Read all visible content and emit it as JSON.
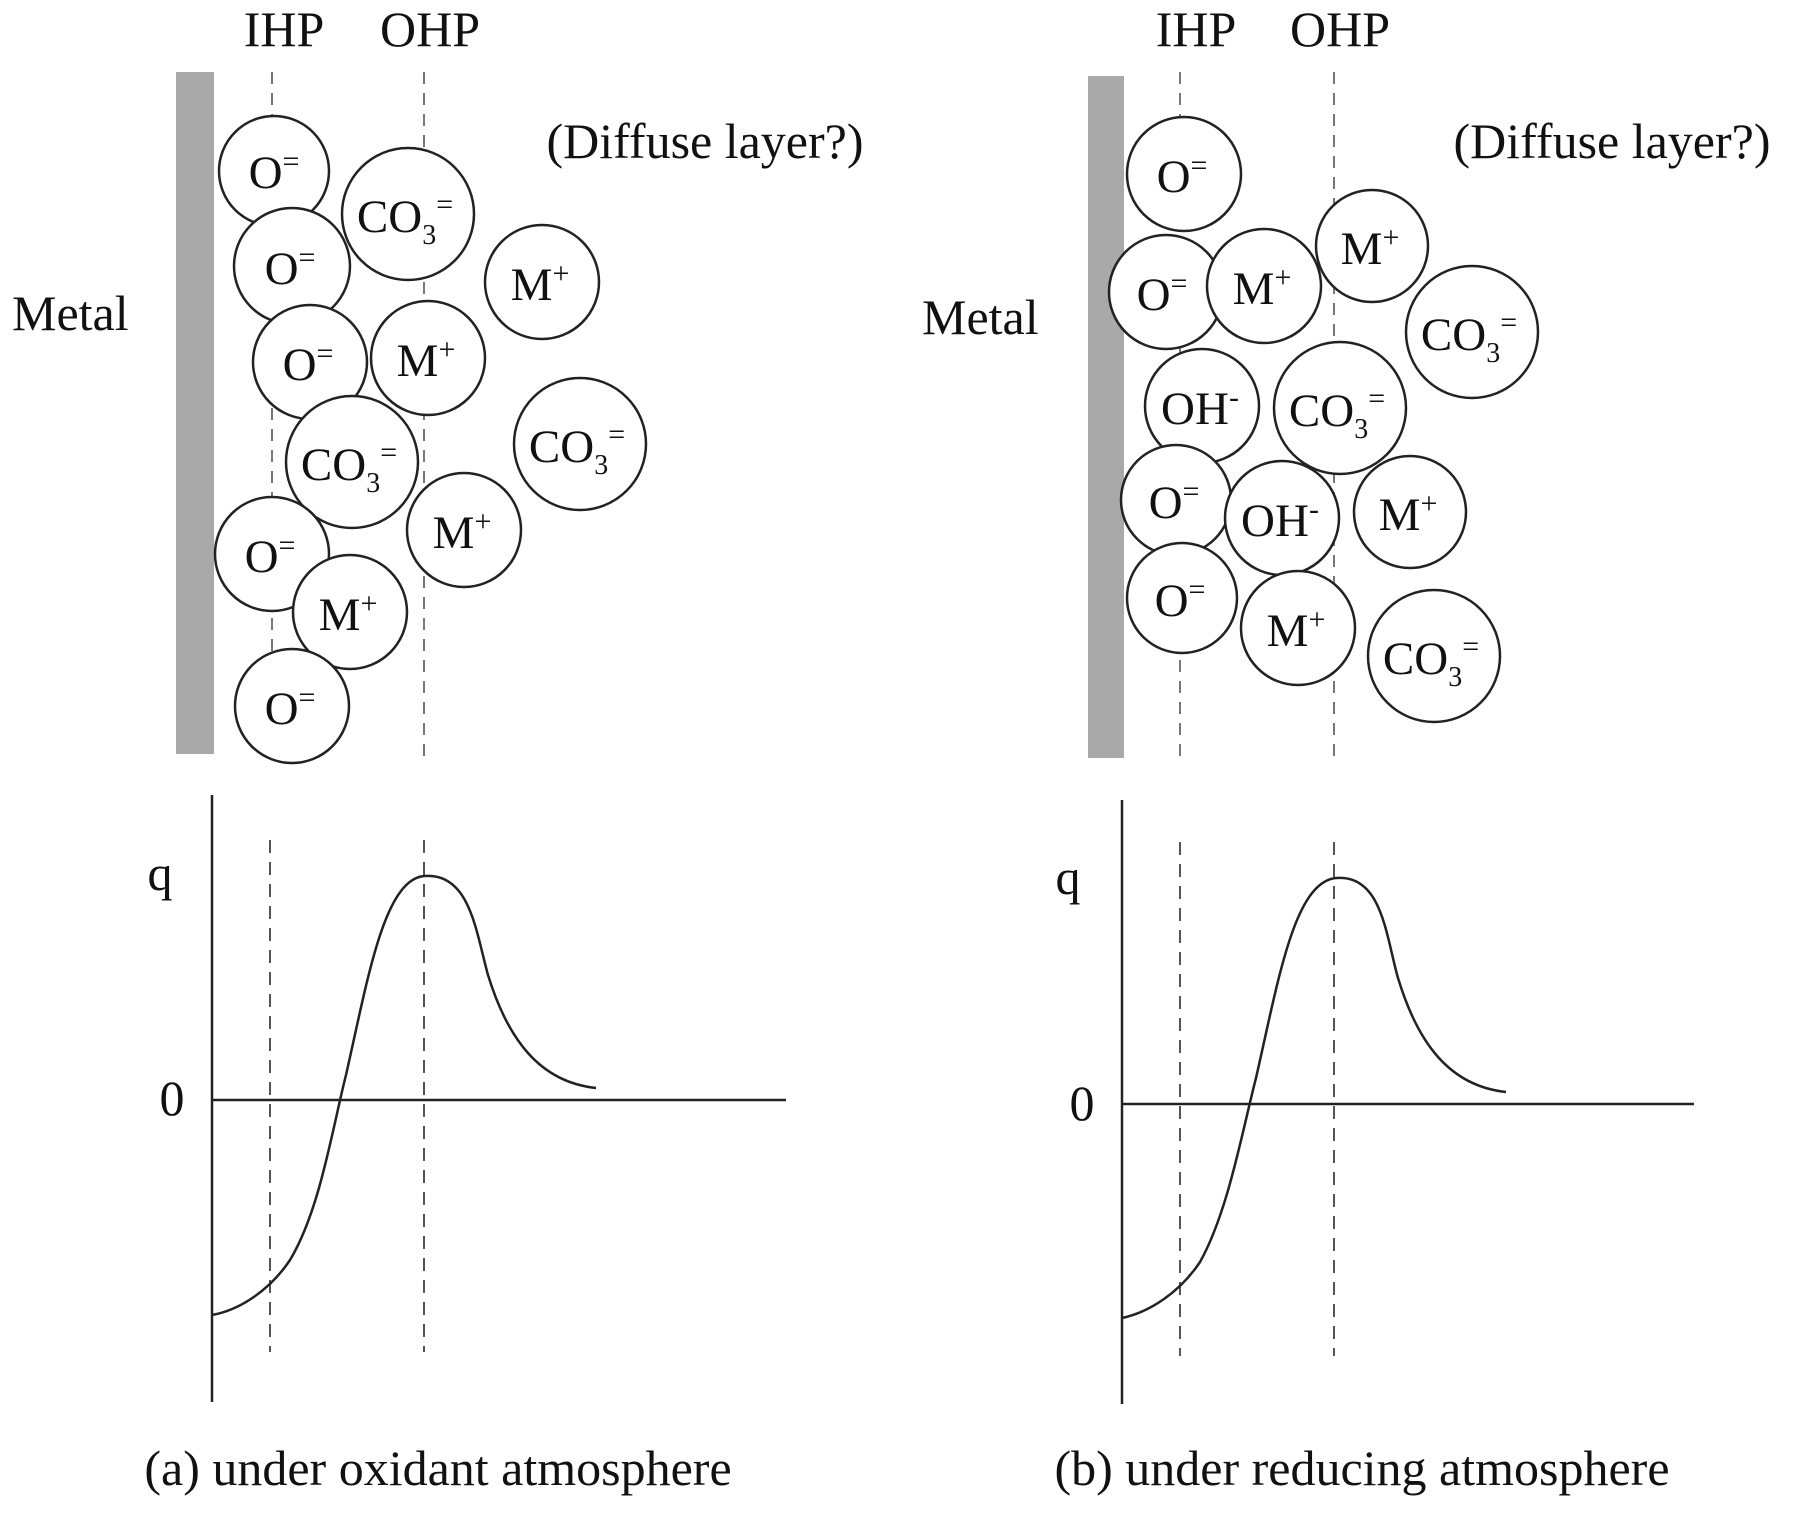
{
  "colors": {
    "ink": "#222222",
    "metal_bar": "#a9a9a9",
    "dashed_line": "#666666",
    "background": "#ffffff"
  },
  "panels": [
    {
      "id": "a",
      "ihp_label": "IHP",
      "ohp_label": "OHP",
      "metal_label": "Metal",
      "diffuse_label": "(Diffuse layer?)",
      "q_label": "q",
      "zero_label": "0",
      "caption": "(a) under oxidant atmosphere",
      "ions": [
        {
          "base": "O",
          "sup": "=",
          "sub": ""
        },
        {
          "base": "CO",
          "sup": "=",
          "sub": "3"
        },
        {
          "base": "O",
          "sup": "=",
          "sub": ""
        },
        {
          "base": "M",
          "sup": "+",
          "sub": ""
        },
        {
          "base": "O",
          "sup": "=",
          "sub": ""
        },
        {
          "base": "M",
          "sup": "+",
          "sub": ""
        },
        {
          "base": "CO",
          "sup": "=",
          "sub": "3"
        },
        {
          "base": "CO",
          "sup": "=",
          "sub": "3"
        },
        {
          "base": "M",
          "sup": "+",
          "sub": ""
        },
        {
          "base": "O",
          "sup": "=",
          "sub": ""
        },
        {
          "base": "M",
          "sup": "+",
          "sub": ""
        },
        {
          "base": "O",
          "sup": "=",
          "sub": ""
        }
      ]
    },
    {
      "id": "b",
      "ihp_label": "IHP",
      "ohp_label": "OHP",
      "metal_label": "Metal",
      "diffuse_label": "(Diffuse layer?)",
      "q_label": "q",
      "zero_label": "0",
      "caption": "(b) under reducing atmosphere",
      "ions": [
        {
          "base": "O",
          "sup": "=",
          "sub": ""
        },
        {
          "base": "M",
          "sup": "+",
          "sub": ""
        },
        {
          "base": "O",
          "sup": "=",
          "sub": ""
        },
        {
          "base": "M",
          "sup": "+",
          "sub": ""
        },
        {
          "base": "CO",
          "sup": "=",
          "sub": "3"
        },
        {
          "base": "OH",
          "sup": "-",
          "sub": ""
        },
        {
          "base": "CO",
          "sup": "=",
          "sub": "3"
        },
        {
          "base": "O",
          "sup": "=",
          "sub": ""
        },
        {
          "base": "OH",
          "sup": "-",
          "sub": ""
        },
        {
          "base": "M",
          "sup": "+",
          "sub": ""
        },
        {
          "base": "O",
          "sup": "=",
          "sub": ""
        },
        {
          "base": "M",
          "sup": "+",
          "sub": ""
        },
        {
          "base": "CO",
          "sup": "=",
          "sub": "3"
        }
      ]
    }
  ]
}
